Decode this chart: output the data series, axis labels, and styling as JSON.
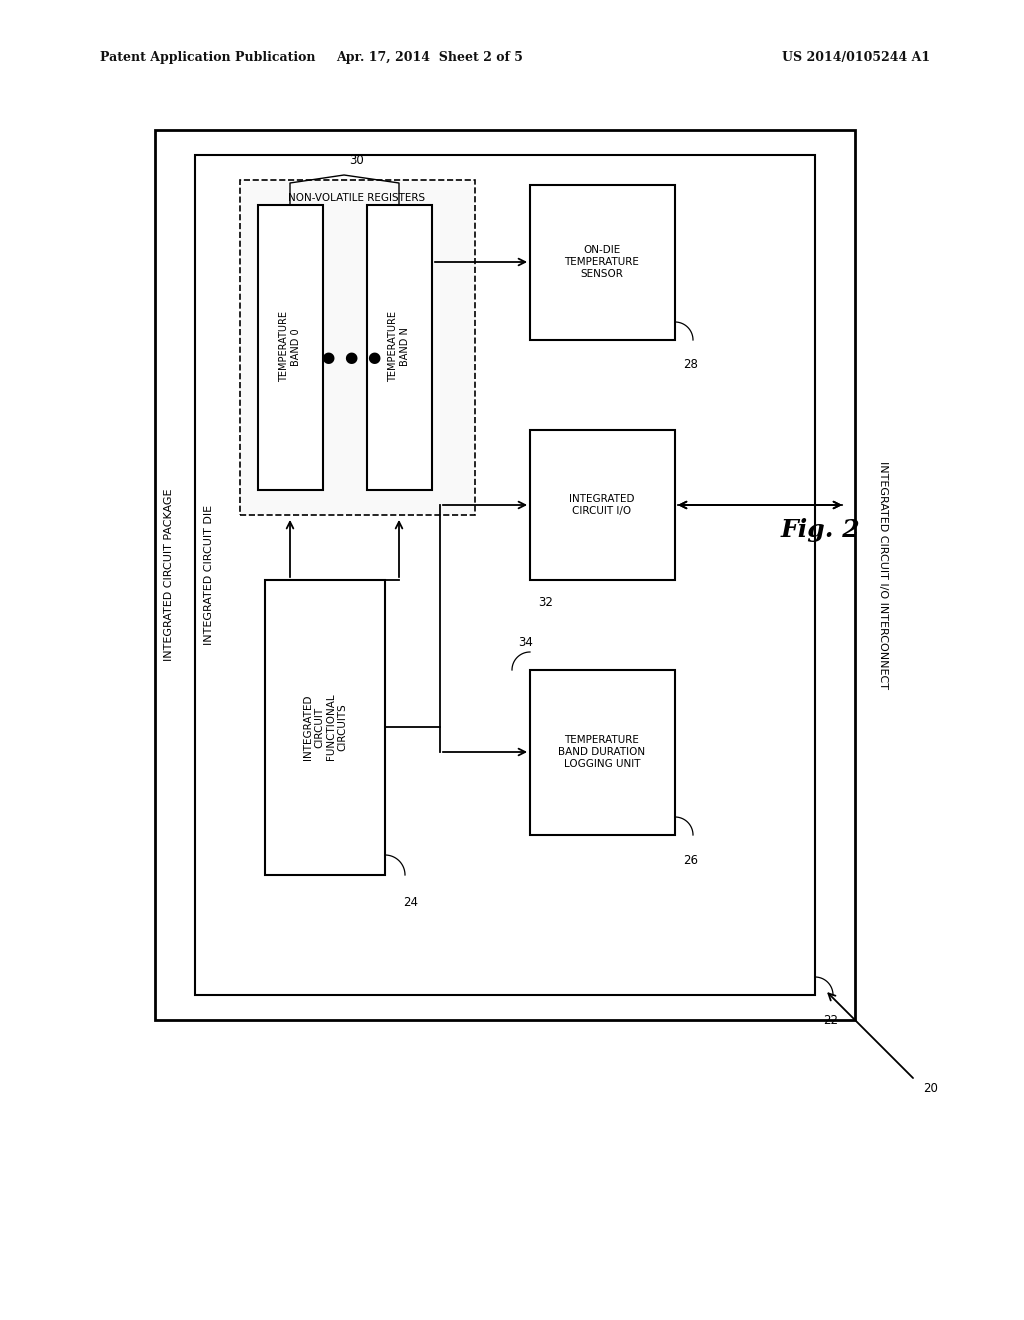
{
  "header_left": "Patent Application Publication",
  "header_mid": "Apr. 17, 2014  Sheet 2 of 5",
  "header_right": "US 2014/0105244 A1",
  "fig_label": "Fig. 2",
  "background": "#ffffff",
  "box_color": "#000000",
  "text_color": "#000000",
  "label_outer": "INTEGRATED CIRCUIT PACKAGE",
  "label_inner": "INTEGRATED CIRCUIT DIE",
  "nvr_box_label": "NON-VOLATILE REGISTERS",
  "band0_box_label": "TEMPERATURE\nBAND 0",
  "bandN_box_label": "TEMPERATURE\nBAND N",
  "icf_box_label": "INTEGRATED\nCIRCUIT\nFUNCTIONAL\nCIRCUITS",
  "temp_sensor_box_label": "ON-DIE\nTEMPERATURE\nSENSOR",
  "ic_io_box_label": "INTEGRATED\nCIRCUIT I/O",
  "tbdl_box_label": "TEMPERATURE\nBAND DURATION\nLOGGING UNIT",
  "interconnect_label": "INTEGRATED CIRCUIT I/O INTERCONNECT",
  "num_20": "20",
  "num_22": "22",
  "num_24": "24",
  "num_26": "26",
  "num_28": "28",
  "num_30": "30",
  "num_32": "32",
  "num_34": "34"
}
